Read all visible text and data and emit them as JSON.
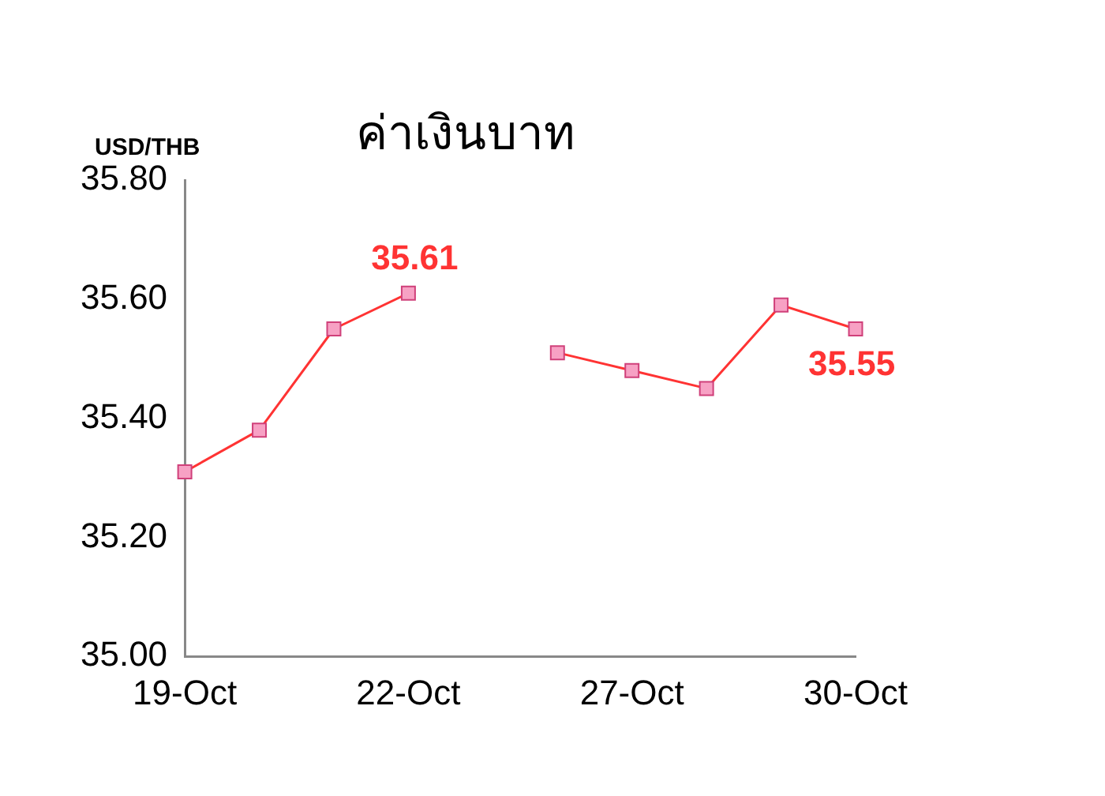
{
  "chart_data": {
    "type": "line",
    "title": "ค่าเงินบาท",
    "ylabel": "USD/THB",
    "categories": [
      "19-Oct",
      null,
      null,
      "22-Oct",
      null,
      null,
      "27-Oct",
      null,
      null,
      "30-Oct"
    ],
    "series": [
      {
        "color": "#ff3333",
        "values": [
          35.31,
          35.38,
          35.55,
          35.61,
          null,
          35.51,
          35.48,
          35.45,
          35.59,
          35.55
        ],
        "value_labels": [
          null,
          null,
          null,
          "35.61",
          null,
          null,
          null,
          null,
          null,
          "35.55"
        ]
      }
    ],
    "ylim": [
      35.0,
      35.8
    ],
    "yticks": [
      {
        "value": 35.0,
        "label": "35.00"
      },
      {
        "value": 35.2,
        "label": "35.20"
      },
      {
        "value": 35.4,
        "label": "35.40"
      },
      {
        "value": 35.6,
        "label": "35.60"
      },
      {
        "value": 35.8,
        "label": "35.80"
      }
    ],
    "marker": "square",
    "line_style": "solid",
    "grid": false,
    "legend": false
  }
}
